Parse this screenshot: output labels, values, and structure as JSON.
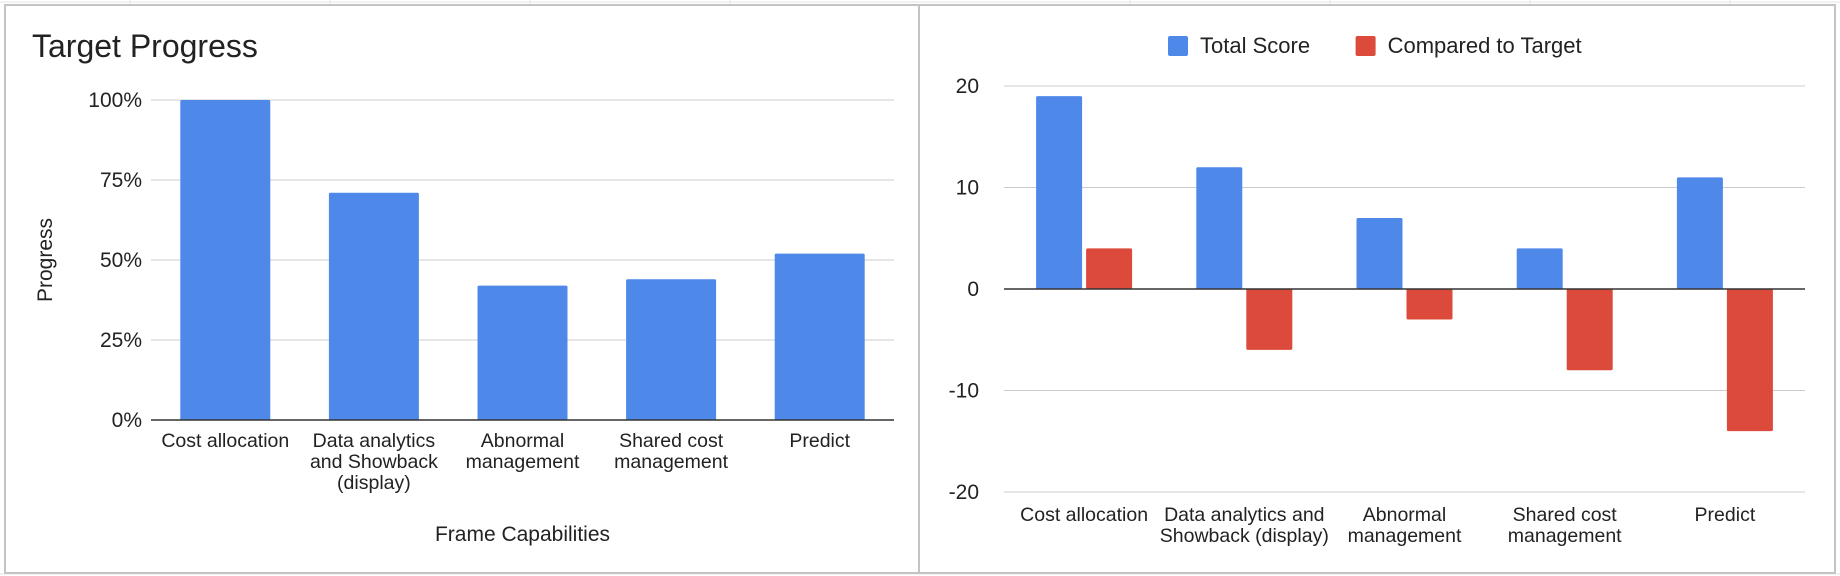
{
  "chart_data": [
    {
      "type": "bar",
      "title": "Target Progress",
      "xlabel": "Frame Capabilities",
      "ylabel": "Progress",
      "categories": [
        [
          "Cost allocation"
        ],
        [
          "Data analytics",
          "and Showback",
          "(display)"
        ],
        [
          "Abnormal",
          "management"
        ],
        [
          "Shared cost",
          "management"
        ],
        [
          "Predict"
        ]
      ],
      "series": [
        {
          "values": [
            1.0,
            0.71,
            0.42,
            0.44,
            0.52
          ],
          "color": "#4e89e9"
        }
      ],
      "ylim": [
        0,
        1
      ],
      "yticks": [
        0,
        0.25,
        0.5,
        0.75,
        1
      ],
      "ytick_labels": [
        "0%",
        "25%",
        "50%",
        "75%",
        "100%"
      ],
      "grid": true,
      "legend": "none"
    },
    {
      "type": "bar",
      "title": "",
      "xlabel": "",
      "ylabel": "",
      "categories": [
        [
          "Cost allocation"
        ],
        [
          "Data analytics and",
          "Showback (display)"
        ],
        [
          "Abnormal",
          "management"
        ],
        [
          "Shared cost",
          "management"
        ],
        [
          "Predict"
        ]
      ],
      "series": [
        {
          "name": "Total Score",
          "values": [
            19,
            12,
            7,
            4,
            11
          ],
          "color": "#4e89e9"
        },
        {
          "name": "Compared to Target",
          "values": [
            4,
            -6,
            -3,
            -8,
            -14
          ],
          "color": "#db4a3b"
        }
      ],
      "ylim": [
        -20,
        20
      ],
      "yticks": [
        -20,
        -10,
        0,
        10,
        20
      ],
      "ytick_labels": [
        "-20",
        "-10",
        "0",
        "10",
        "20"
      ],
      "grid": true,
      "legend": "top-center"
    }
  ]
}
